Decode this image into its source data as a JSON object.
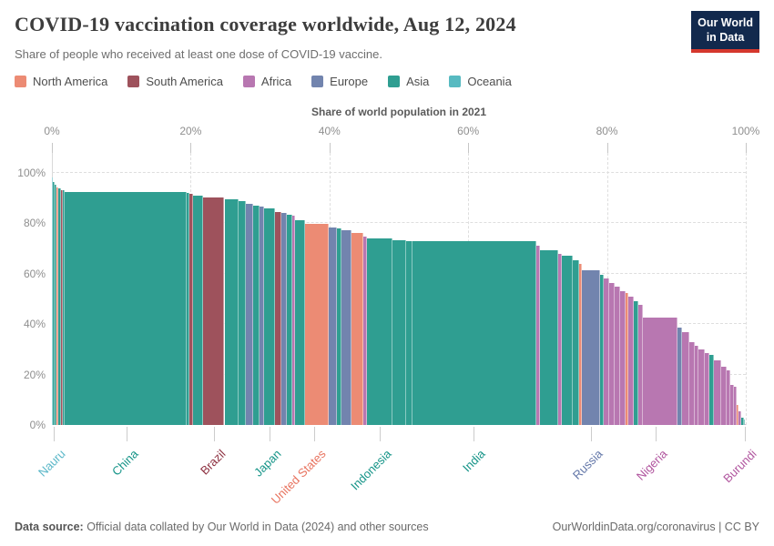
{
  "header": {
    "title": "COVID-19 vaccination coverage worldwide, Aug 12, 2024",
    "subtitle": "Share of people who received at least one dose of COVID-19 vaccine.",
    "logo_line1": "Our World",
    "logo_line2": "in Data"
  },
  "legend": {
    "items": [
      {
        "label": "North America"
      },
      {
        "label": "South America"
      },
      {
        "label": "Africa"
      },
      {
        "label": "Europe"
      },
      {
        "label": "Asia"
      },
      {
        "label": "Oceania"
      }
    ]
  },
  "axis": {
    "top_title": "Share of world population in 2021",
    "top_tick_values": [
      0,
      20,
      40,
      60,
      80,
      100
    ],
    "top_tick_labels": [
      "0%",
      "20%",
      "40%",
      "60%",
      "80%",
      "100%"
    ],
    "y_tick_values": [
      0,
      20,
      40,
      60,
      80,
      100
    ],
    "y_tick_labels": [
      "0%",
      "20%",
      "40%",
      "60%",
      "80%",
      "100%"
    ]
  },
  "chart_data": {
    "type": "bar",
    "subtype": "marimekko",
    "title": "COVID-19 vaccination coverage worldwide, Aug 12, 2024",
    "xlabel": "Share of world population in 2021",
    "ylabel": "Share of people who received at least one dose of COVID-19 vaccine",
    "xlim": [
      0,
      100
    ],
    "ylim": [
      0,
      100
    ],
    "grid": true,
    "continent_colors": {
      "North America": "#ec8b74",
      "South America": "#9e525c",
      "Africa": "#b877b1",
      "Europe": "#7284ae",
      "Asia": "#2f9e91",
      "Oceania": "#57bac1"
    },
    "label_colors": {
      "North America": "#e8735f",
      "South America": "#8d3040",
      "Africa": "#b1569f",
      "Europe": "#6276a8",
      "Asia": "#159488",
      "Oceania": "#5ab7c8"
    },
    "bars": [
      {
        "name": "Nauru",
        "continent": "Oceania",
        "width": 0.15,
        "value": 98.2
      },
      {
        "name": "",
        "continent": "Asia",
        "width": 0.25,
        "value": 96.3
      },
      {
        "name": "",
        "continent": "Asia",
        "width": 0.3,
        "value": 95.2
      },
      {
        "name": "",
        "continent": "North America",
        "width": 0.25,
        "value": 94.2
      },
      {
        "name": "",
        "continent": "Asia",
        "width": 0.35,
        "value": 93.7
      },
      {
        "name": "",
        "continent": "South America",
        "width": 0.29,
        "value": 93.2
      },
      {
        "name": "",
        "continent": "Asia",
        "width": 0.25,
        "value": 93.0
      },
      {
        "name": "China",
        "continent": "Asia",
        "width": 17.61,
        "value": 92.6
      },
      {
        "name": "",
        "continent": "Asia",
        "width": 0.4,
        "value": 92.2
      },
      {
        "name": "",
        "continent": "South America",
        "width": 0.55,
        "value": 91.6
      },
      {
        "name": "",
        "continent": "Asia",
        "width": 1.45,
        "value": 91.0
      },
      {
        "name": "Brazil",
        "continent": "South America",
        "width": 3.02,
        "value": 90.3
      },
      {
        "name": "",
        "continent": "Asia",
        "width": 1.97,
        "value": 89.4
      },
      {
        "name": "",
        "continent": "Asia",
        "width": 1.05,
        "value": 88.7
      },
      {
        "name": "",
        "continent": "Europe",
        "width": 1.05,
        "value": 87.6
      },
      {
        "name": "",
        "continent": "Asia",
        "width": 0.92,
        "value": 87.1
      },
      {
        "name": "",
        "continent": "Europe",
        "width": 0.66,
        "value": 86.5
      },
      {
        "name": "Japan",
        "continent": "Asia",
        "width": 1.58,
        "value": 85.9
      },
      {
        "name": "",
        "continent": "South America",
        "width": 0.92,
        "value": 84.6
      },
      {
        "name": "",
        "continent": "Europe",
        "width": 0.79,
        "value": 84.1
      },
      {
        "name": "",
        "continent": "Asia",
        "width": 0.79,
        "value": 83.5
      },
      {
        "name": "",
        "continent": "Africa",
        "width": 0.39,
        "value": 83.0
      },
      {
        "name": "",
        "continent": "Asia",
        "width": 1.44,
        "value": 81.2
      },
      {
        "name": "United States",
        "continent": "North America",
        "width": 3.42,
        "value": 79.7
      },
      {
        "name": "",
        "continent": "Europe",
        "width": 1.18,
        "value": 78.5
      },
      {
        "name": "",
        "continent": "Asia",
        "width": 0.66,
        "value": 78.0
      },
      {
        "name": "",
        "continent": "Europe",
        "width": 1.45,
        "value": 77.3
      },
      {
        "name": "",
        "continent": "North America",
        "width": 1.71,
        "value": 76.3
      },
      {
        "name": "",
        "continent": "Africa",
        "width": 0.53,
        "value": 74.8
      },
      {
        "name": "Indonesia",
        "continent": "Asia",
        "width": 3.68,
        "value": 74.0
      },
      {
        "name": "",
        "continent": "Asia",
        "width": 1.97,
        "value": 73.4
      },
      {
        "name": "",
        "continent": "Asia",
        "width": 0.92,
        "value": 73.1
      },
      {
        "name": "India",
        "continent": "Asia",
        "width": 17.87,
        "value": 72.8
      },
      {
        "name": "",
        "continent": "Africa",
        "width": 0.53,
        "value": 71.0
      },
      {
        "name": "",
        "continent": "Asia",
        "width": 2.63,
        "value": 69.3
      },
      {
        "name": "",
        "continent": "Africa",
        "width": 0.53,
        "value": 68.0
      },
      {
        "name": "",
        "continent": "Asia",
        "width": 1.58,
        "value": 67.0
      },
      {
        "name": "",
        "continent": "Asia",
        "width": 0.92,
        "value": 65.5
      },
      {
        "name": "",
        "continent": "North America",
        "width": 0.39,
        "value": 64.0
      },
      {
        "name": "Russia",
        "continent": "Europe",
        "width": 2.63,
        "value": 61.5
      },
      {
        "name": "",
        "continent": "Asia",
        "width": 0.53,
        "value": 59.5
      },
      {
        "name": "",
        "continent": "Africa",
        "width": 0.79,
        "value": 58.0
      },
      {
        "name": "",
        "continent": "Africa",
        "width": 0.79,
        "value": 56.5
      },
      {
        "name": "",
        "continent": "Africa",
        "width": 0.79,
        "value": 55.0
      },
      {
        "name": "",
        "continent": "Africa",
        "width": 0.79,
        "value": 53.0
      },
      {
        "name": "",
        "continent": "North America",
        "width": 0.39,
        "value": 52.2
      },
      {
        "name": "",
        "continent": "Africa",
        "width": 0.79,
        "value": 51.0
      },
      {
        "name": "",
        "continent": "Asia",
        "width": 0.66,
        "value": 49.0
      },
      {
        "name": "",
        "continent": "Africa",
        "width": 0.66,
        "value": 47.5
      },
      {
        "name": "Nigeria",
        "continent": "Africa",
        "width": 4.99,
        "value": 42.5
      },
      {
        "name": "",
        "continent": "Europe",
        "width": 0.66,
        "value": 38.5
      },
      {
        "name": "",
        "continent": "Africa",
        "width": 1.05,
        "value": 36.8
      },
      {
        "name": "",
        "continent": "Africa",
        "width": 0.79,
        "value": 33.0
      },
      {
        "name": "",
        "continent": "Africa",
        "width": 0.53,
        "value": 31.5
      },
      {
        "name": "",
        "continent": "Africa",
        "width": 0.79,
        "value": 30.0
      },
      {
        "name": "",
        "continent": "Africa",
        "width": 0.66,
        "value": 28.6
      },
      {
        "name": "",
        "continent": "Asia",
        "width": 0.66,
        "value": 27.8
      },
      {
        "name": "",
        "continent": "Africa",
        "width": 1.05,
        "value": 25.5
      },
      {
        "name": "",
        "continent": "Africa",
        "width": 0.79,
        "value": 23.0
      },
      {
        "name": "",
        "continent": "Africa",
        "width": 0.53,
        "value": 21.5
      },
      {
        "name": "",
        "continent": "Africa",
        "width": 0.53,
        "value": 16.0
      },
      {
        "name": "",
        "continent": "Africa",
        "width": 0.39,
        "value": 15.0
      },
      {
        "name": "",
        "continent": "North America",
        "width": 0.26,
        "value": 8.0
      },
      {
        "name": "",
        "continent": "Africa",
        "width": 0.39,
        "value": 5.5
      },
      {
        "name": "",
        "continent": "Asia",
        "width": 0.39,
        "value": 3.0
      },
      {
        "name": "",
        "continent": "Asia",
        "width": 0.2,
        "value": 2.0
      },
      {
        "name": "Burundi",
        "continent": "Africa",
        "width": 0.12,
        "value": 0.5
      }
    ],
    "x_labels": [
      {
        "name": "Nauru",
        "x": 0.2,
        "continent": "Oceania"
      },
      {
        "name": "China",
        "x": 10.7,
        "continent": "Asia"
      },
      {
        "name": "Brazil",
        "x": 23.4,
        "continent": "South America"
      },
      {
        "name": "Japan",
        "x": 31.3,
        "continent": "Asia"
      },
      {
        "name": "United States",
        "x": 37.8,
        "continent": "North America"
      },
      {
        "name": "Indonesia",
        "x": 47.2,
        "continent": "Asia"
      },
      {
        "name": "India",
        "x": 60.8,
        "continent": "Asia"
      },
      {
        "name": "Russia",
        "x": 77.7,
        "continent": "Europe"
      },
      {
        "name": "Nigeria",
        "x": 87.0,
        "continent": "Africa"
      },
      {
        "name": "Burundi",
        "x": 99.9,
        "continent": "Africa"
      }
    ]
  },
  "footer": {
    "source_label": "Data source:",
    "source_text": " Official data collated by Our World in Data (2024) and other sources",
    "license_text": "OurWorldinData.org/coronavirus | CC BY"
  }
}
